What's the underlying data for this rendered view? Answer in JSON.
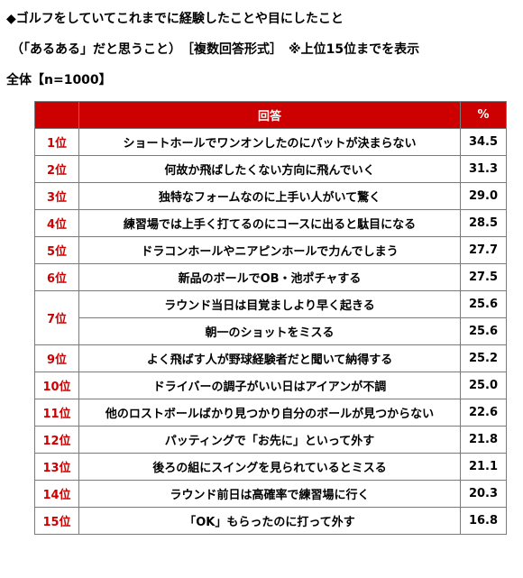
{
  "header": {
    "title": "◆ゴルフをしていてこれまでに経験したことや目にしたこと",
    "subtitle": "（「あるある」だと思うこと）　［複数回答形式］　※上位15位までを表示",
    "base": "全体【n=1000】"
  },
  "table": {
    "col_answer": "回答",
    "col_percent": "%",
    "rows": [
      {
        "rank": "1位",
        "answer": "ショートホールでワンオンしたのにパットが決まらない",
        "percent": "34.5"
      },
      {
        "rank": "2位",
        "answer": "何故か飛ばしたくない方向に飛んでいく",
        "percent": "31.3"
      },
      {
        "rank": "3位",
        "answer": "独特なフォームなのに上手い人がいて驚く",
        "percent": "29.0"
      },
      {
        "rank": "4位",
        "answer": "練習場では上手く打てるのにコースに出ると駄目になる",
        "percent": "28.5"
      },
      {
        "rank": "5位",
        "answer": "ドラコンホールやニアピンホールで力んでしまう",
        "percent": "27.7"
      },
      {
        "rank": "6位",
        "answer": "新品のボールでOB・池ポチャする",
        "percent": "27.5"
      },
      {
        "rank": "7位",
        "answer": "ラウンド当日は目覚ましより早く起きる",
        "percent": "25.6"
      },
      {
        "rank": "",
        "answer": "朝一のショットをミスる",
        "percent": "25.6"
      },
      {
        "rank": "9位",
        "answer": "よく飛ばす人が野球経験者だと聞いて納得する",
        "percent": "25.2"
      },
      {
        "rank": "10位",
        "answer": "ドライバーの調子がいい日はアイアンが不調",
        "percent": "25.0"
      },
      {
        "rank": "11位",
        "answer": "他のロストボールばかり見つかり自分のボールが見つからない",
        "percent": "22.6"
      },
      {
        "rank": "12位",
        "answer": "パッティングで「お先に」といって外す",
        "percent": "21.8"
      },
      {
        "rank": "13位",
        "answer": "後ろの組にスイングを見られているとミスる",
        "percent": "21.1"
      },
      {
        "rank": "14位",
        "answer": "ラウンド前日は高確率で練習場に行く",
        "percent": "20.3"
      },
      {
        "rank": "15位",
        "answer": "「OK」もらったのに打って外す",
        "percent": "16.8"
      }
    ]
  }
}
